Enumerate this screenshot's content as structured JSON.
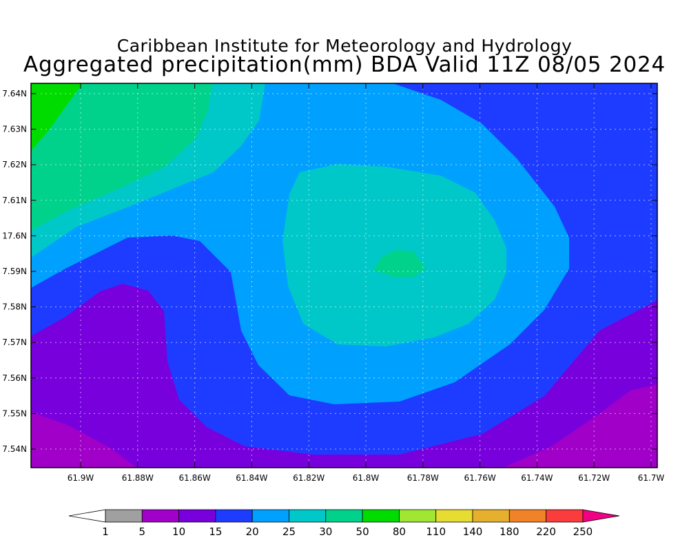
{
  "header": {
    "institute": "Caribbean Institute for Meteorology and Hydrology",
    "product_title": "Aggregated precipitation(mm) BDA Valid 11Z 08/05 2024"
  },
  "map": {
    "lon_ticks": [
      "61.9W",
      "61.88W",
      "61.86W",
      "61.84W",
      "61.82W",
      "61.8W",
      "61.78W",
      "61.76W",
      "61.74W",
      "61.72W",
      "61.7W"
    ],
    "lat_ticks": [
      "7.64N",
      "7.63N",
      "7.62N",
      "7.61N",
      "17.6N",
      "7.59N",
      "7.58N",
      "7.57N",
      "7.56N",
      "7.55N",
      "7.54N"
    ],
    "grid": "dotted",
    "field": "precipitation (mm)",
    "maximum_region": "30-50 mm near 61.79W, 17.59N",
    "minimum_region": "5-10 mm along the bottom edge"
  },
  "colorbar": {
    "labels": [
      "1",
      "5",
      "10",
      "15",
      "20",
      "25",
      "30",
      "50",
      "80",
      "110",
      "140",
      "180",
      "220",
      "250"
    ],
    "colors": [
      "#a0a0a0",
      "#a000c8",
      "#7800dc",
      "#1e3cff",
      "#00a0ff",
      "#00c8c8",
      "#00d28c",
      "#00dc00",
      "#a0e632",
      "#e6dc32",
      "#e6af2d",
      "#f08228",
      "#fa3c3c",
      "#f00082"
    ],
    "under_color": "#ffffff"
  }
}
